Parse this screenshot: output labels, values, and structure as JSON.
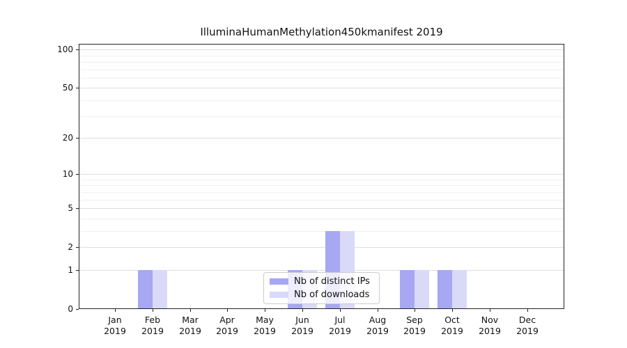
{
  "title": "IlluminaHumanMethylation450kmanifest 2019",
  "chart_data": {
    "type": "bar",
    "title": "IlluminaHumanMethylation450kmanifest 2019",
    "categories": [
      "Jan",
      "Feb",
      "Mar",
      "Apr",
      "May",
      "Jun",
      "Jul",
      "Aug",
      "Sep",
      "Oct",
      "Nov",
      "Dec"
    ],
    "category_year": "2019",
    "series": [
      {
        "name": "Nb of distinct IPs",
        "color": "#a7a7f3",
        "values": [
          0,
          1,
          0,
          0,
          0,
          1,
          3,
          0,
          1,
          1,
          0,
          0
        ]
      },
      {
        "name": "Nb of downloads",
        "color": "#d9d9f8",
        "values": [
          0,
          1,
          0,
          0,
          0,
          1,
          3,
          0,
          1,
          1,
          0,
          0
        ]
      }
    ],
    "ylabel": "",
    "xlabel": "",
    "ylim": [
      0,
      100
    ],
    "y_scale": "log1p",
    "y_ticks": [
      0,
      1,
      2,
      5,
      10,
      20,
      50,
      100
    ],
    "y_minor_gridlines": [
      3,
      4,
      6,
      7,
      8,
      9,
      30,
      40,
      60,
      70,
      80,
      90
    ],
    "grid": true,
    "legend_position": "bottom-center"
  },
  "legend": {
    "items": [
      {
        "label": "Nb of distinct IPs",
        "color": "#a7a7f3"
      },
      {
        "label": "Nb of downloads",
        "color": "#d9d9f8"
      }
    ]
  },
  "colors": {
    "background": "#ffffff",
    "axis": "#222222",
    "grid_major": "#dddddd",
    "grid_minor": "#efefef",
    "text": "#111111",
    "bar_distinct_ips": "#a7a7f3",
    "bar_downloads": "#d9d9f8"
  }
}
